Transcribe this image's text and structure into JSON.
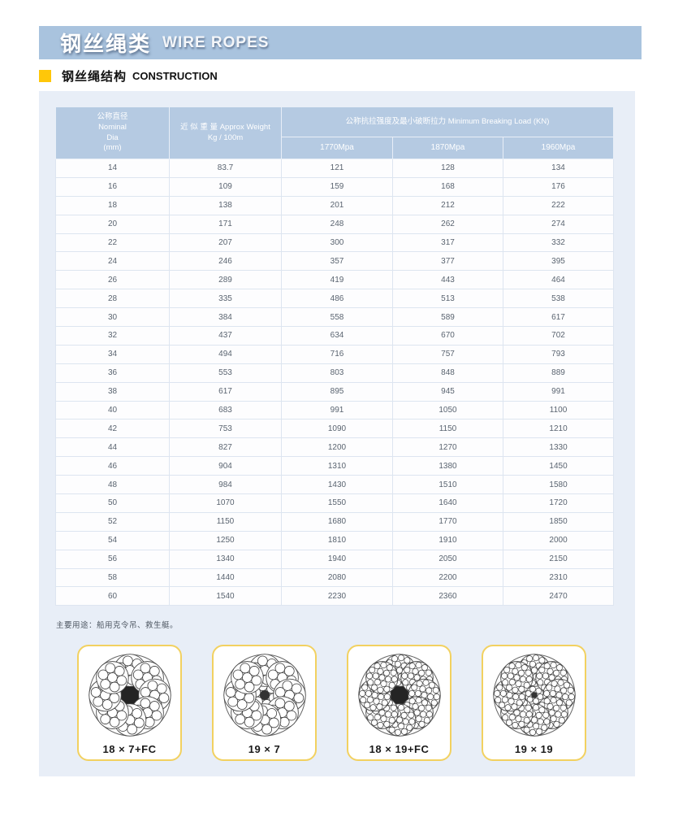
{
  "banner": {
    "title_zh": "钢丝绳类",
    "title_en": "WIRE ROPES"
  },
  "section": {
    "title_zh": "钢丝绳结构",
    "title_en": "CONSTRUCTION"
  },
  "table": {
    "header": {
      "nominal_dia": "公称直径\nNominal\nDia\n(mm)",
      "approx_weight": "近 似 重 量 Approx Weight\nKg / 100m",
      "breaking_load_group": "公称抗拉强度及最小破断拉力 Minimum Breaking Load (KN)",
      "grades": [
        "1770Mpa",
        "1870Mpa",
        "1960Mpa"
      ]
    },
    "rows": [
      [
        "14",
        "83.7",
        "121",
        "128",
        "134"
      ],
      [
        "16",
        "109",
        "159",
        "168",
        "176"
      ],
      [
        "18",
        "138",
        "201",
        "212",
        "222"
      ],
      [
        "20",
        "171",
        "248",
        "262",
        "274"
      ],
      [
        "22",
        "207",
        "300",
        "317",
        "332"
      ],
      [
        "24",
        "246",
        "357",
        "377",
        "395"
      ],
      [
        "26",
        "289",
        "419",
        "443",
        "464"
      ],
      [
        "28",
        "335",
        "486",
        "513",
        "538"
      ],
      [
        "30",
        "384",
        "558",
        "589",
        "617"
      ],
      [
        "32",
        "437",
        "634",
        "670",
        "702"
      ],
      [
        "34",
        "494",
        "716",
        "757",
        "793"
      ],
      [
        "36",
        "553",
        "803",
        "848",
        "889"
      ],
      [
        "38",
        "617",
        "895",
        "945",
        "991"
      ],
      [
        "40",
        "683",
        "991",
        "1050",
        "1100"
      ],
      [
        "42",
        "753",
        "1090",
        "1150",
        "1210"
      ],
      [
        "44",
        "827",
        "1200",
        "1270",
        "1330"
      ],
      [
        "46",
        "904",
        "1310",
        "1380",
        "1450"
      ],
      [
        "48",
        "984",
        "1430",
        "1510",
        "1580"
      ],
      [
        "50",
        "1070",
        "1550",
        "1640",
        "1720"
      ],
      [
        "52",
        "1150",
        "1680",
        "1770",
        "1850"
      ],
      [
        "54",
        "1250",
        "1810",
        "1910",
        "2000"
      ],
      [
        "56",
        "1340",
        "1940",
        "2050",
        "2150"
      ],
      [
        "58",
        "1440",
        "2080",
        "2200",
        "2310"
      ],
      [
        "60",
        "1540",
        "2230",
        "2360",
        "2470"
      ]
    ]
  },
  "footnote": "主要用途：船用克令吊、救生艇。",
  "diagrams": [
    {
      "label": "18 × 7+FC",
      "core": "fiber",
      "wires_per_strand": 7
    },
    {
      "label": "19 × 7",
      "core": "strand",
      "wires_per_strand": 7
    },
    {
      "label": "18 × 19+FC",
      "core": "fiber",
      "wires_per_strand": 19
    },
    {
      "label": "19 × 19",
      "core": "strand",
      "wires_per_strand": 19
    }
  ],
  "colors": {
    "banner_blue": "#a9c3de",
    "header_cell_blue": "#b5cae2",
    "content_bg": "#e8eef7",
    "accent_yellow": "#ffc709",
    "card_border": "#f2d160"
  }
}
